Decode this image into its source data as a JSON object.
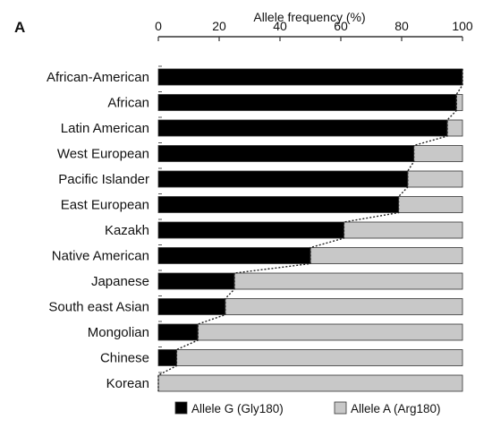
{
  "panel_label": "A",
  "colors": {
    "allele_g": "#000000",
    "allele_a": "#c8c8c8",
    "stroke": "#333333",
    "dotted": "#222222"
  },
  "chart_data": {
    "type": "bar",
    "orientation": "horizontal",
    "stacked": true,
    "xlabel": "Allele frequency (%)",
    "xlabel_position": "top",
    "xlim": [
      0,
      100
    ],
    "xticks": [
      0,
      20,
      40,
      60,
      80,
      100
    ],
    "xtick_labels": [
      "0",
      "20",
      "40",
      "60",
      "80",
      "100"
    ],
    "categories": [
      "African-American",
      "African",
      "Latin American",
      "West European",
      "Pacific Islander",
      "East European",
      "Kazakh",
      "Native American",
      "Japanese",
      "South east Asian",
      "Mongolian",
      "Chinese",
      "Korean"
    ],
    "series": [
      {
        "name": "Allele G (Gly180)",
        "color": "#000000",
        "values": [
          100,
          98,
          95,
          84,
          82,
          79,
          61,
          50,
          25,
          22,
          13,
          6,
          0
        ]
      },
      {
        "name": "Allele A (Arg180)",
        "color": "#c8c8c8",
        "values": [
          0,
          2,
          5,
          16,
          18,
          21,
          39,
          50,
          75,
          78,
          87,
          94,
          100
        ]
      }
    ],
    "connector": "dotted line joining the G/A boundaries of successive bars",
    "legend_position": "bottom",
    "grid": false
  }
}
